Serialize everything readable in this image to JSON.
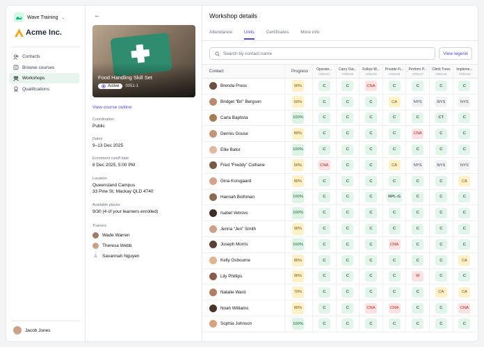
{
  "sidebar": {
    "workspace": "Wave Training",
    "brand": "Acme Inc.",
    "nav": [
      {
        "label": "Contacts",
        "icon": "contacts-icon",
        "active": false
      },
      {
        "label": "Browse courses",
        "icon": "book-icon",
        "active": false
      },
      {
        "label": "Workshops",
        "icon": "workshop-icon",
        "active": true
      },
      {
        "label": "Qualifications",
        "icon": "award-icon",
        "active": false
      }
    ],
    "user": "Jacob Jones"
  },
  "detail": {
    "course_title": "Food Handling Skill Set",
    "status": "Active",
    "code": "0051-1",
    "view_outline": "View course outline",
    "coordination_label": "Coordination",
    "coordination": "Public",
    "dates_label": "Dates",
    "dates": "9–13 Dec 2025",
    "cutoff_label": "Enrolment cutoff date",
    "cutoff": "8 Dec 2025, 5:00 PM",
    "location_label": "Location",
    "location_line1": "Queensland Campus",
    "location_line2": "33 Pine St, Mackay QLD 4740",
    "places_label": "Available places",
    "places": "9/30 (4 of your learners enrolled)",
    "trainers_label": "Trainers",
    "trainers": [
      "Wade Warren",
      "Theresa Webb",
      "Savannah Nguyen"
    ]
  },
  "main": {
    "title": "Workshop details",
    "tabs": [
      "Attendance",
      "Units",
      "Certificates",
      "More info"
    ],
    "active_tab": "Units",
    "search_placeholder": "Search by contact name",
    "legend_button": "View legend",
    "contact_header": "Contact",
    "progress_header": "Progress",
    "units": [
      {
        "name": "Operate...",
        "code": "ARB101"
      },
      {
        "name": "Carry Out...",
        "code": "ARB102"
      },
      {
        "name": "Follow W...",
        "code": "ARB106"
      },
      {
        "name": "Provide Fi...",
        "code": "ARB105"
      },
      {
        "name": "Perform P...",
        "code": "ARB107"
      },
      {
        "name": "Climb Trees",
        "code": "ARB108"
      },
      {
        "name": "Impleme...",
        "code": "ARB103"
      }
    ],
    "rows": [
      {
        "name": "Brenda Press",
        "progress": "90%",
        "units": [
          "C",
          "C",
          "CNA",
          "C",
          "C",
          "C",
          "C"
        ]
      },
      {
        "name": "Bridget “Bri” Bergson",
        "progress": "50%",
        "units": [
          "C",
          "C",
          "C",
          "CA",
          "NYS",
          "NYS",
          "NYS"
        ]
      },
      {
        "name": "Carla Baptista",
        "progress": "100%",
        "units": [
          "C",
          "C",
          "C",
          "C",
          "C",
          "CT",
          "C"
        ]
      },
      {
        "name": "Dennis Gouse",
        "progress": "80%",
        "units": [
          "C",
          "C",
          "C",
          "C",
          "CNA",
          "C",
          "C"
        ]
      },
      {
        "name": "Ellie Bator",
        "progress": "100%",
        "units": [
          "C",
          "C",
          "C",
          "C",
          "C",
          "C",
          "C"
        ]
      },
      {
        "name": "Fred “Freddy” Culhane",
        "progress": "50%",
        "units": [
          "CNA",
          "C",
          "C",
          "CA",
          "NYS",
          "NYS",
          "NYS"
        ]
      },
      {
        "name": "Gina Korsgaard",
        "progress": "80%",
        "units": [
          "C",
          "C",
          "C",
          "C",
          "C",
          "C",
          "CA"
        ]
      },
      {
        "name": "Hannah Bothman",
        "progress": "100%",
        "units": [
          "C",
          "C",
          "C",
          "RPL-G",
          "C",
          "C",
          "C"
        ]
      },
      {
        "name": "Isabel Vetrovs",
        "progress": "100%",
        "units": [
          "C",
          "C",
          "C",
          "C",
          "C",
          "C",
          "C"
        ]
      },
      {
        "name": "Jenna “Jen” Smith",
        "progress": "90%",
        "units": [
          "C",
          "C",
          "C",
          "C",
          "C",
          "C",
          "C"
        ]
      },
      {
        "name": "Joseph Morris",
        "progress": "100%",
        "units": [
          "C",
          "C",
          "C",
          "CNA",
          "C",
          "C",
          "C"
        ]
      },
      {
        "name": "Kelly Osbourne",
        "progress": "80%",
        "units": [
          "C",
          "C",
          "C",
          "C",
          "C",
          "C",
          "CA"
        ]
      },
      {
        "name": "Lily Phillips",
        "progress": "90%",
        "units": [
          "C",
          "C",
          "C",
          "C",
          "W",
          "C",
          "C"
        ]
      },
      {
        "name": "Natalie Ward",
        "progress": "70%",
        "units": [
          "C",
          "C",
          "C",
          "C",
          "C",
          "CA",
          "CA"
        ]
      },
      {
        "name": "Noah Williams",
        "progress": "80%",
        "units": [
          "C",
          "C",
          "CNA",
          "CNA",
          "C",
          "C",
          "CNA"
        ]
      },
      {
        "name": "Sophia Johnson",
        "progress": "100%",
        "units": [
          "C",
          "C",
          "C",
          "C",
          "C",
          "C",
          "C"
        ]
      }
    ]
  },
  "colors": {
    "accent": "#4f46e5",
    "brand": "#f5a623",
    "active_nav": "#e7f5ee"
  }
}
